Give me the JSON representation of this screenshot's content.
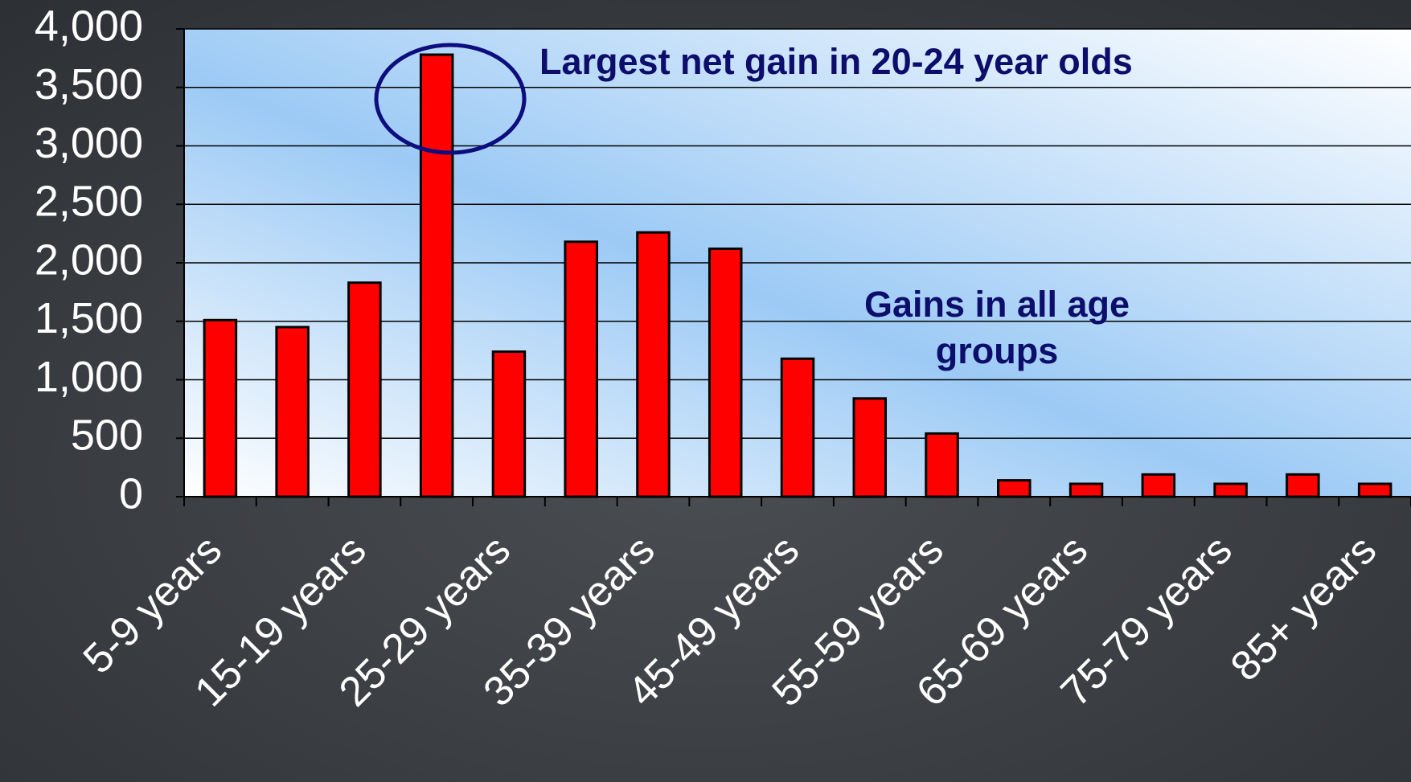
{
  "chart_data": {
    "type": "bar",
    "categories": [
      "5-9 years",
      null,
      "15-19 years",
      null,
      "25-29 years",
      null,
      "35-39 years",
      null,
      "45-49 years",
      null,
      "55-59 years",
      null,
      "65-69 years",
      null,
      "75-79 years",
      null,
      "85+ years"
    ],
    "values": [
      1510,
      1450,
      1830,
      3780,
      1240,
      2180,
      2260,
      2120,
      1180,
      840,
      540,
      140,
      110,
      190,
      110,
      190,
      110
    ],
    "color": "#ff0000",
    "ylim": [
      0,
      4000
    ],
    "yticks": [
      0,
      {
        "value": 500,
        "label": "500"
      },
      {
        "value": 1000,
        "label": "1,000"
      },
      {
        "value": 1500,
        "label": "1,500"
      },
      {
        "value": 2000,
        "label": "2,000"
      },
      {
        "value": 2500,
        "label": "2,500"
      },
      {
        "value": 3000,
        "label": "3,000"
      },
      {
        "value": 3500,
        "label": "3,500"
      },
      {
        "value": 4000,
        "label": "4,000"
      }
    ],
    "grid": true,
    "annotations": [
      "Largest net gain in 20-24 year olds",
      "Gains in all age groups"
    ]
  }
}
